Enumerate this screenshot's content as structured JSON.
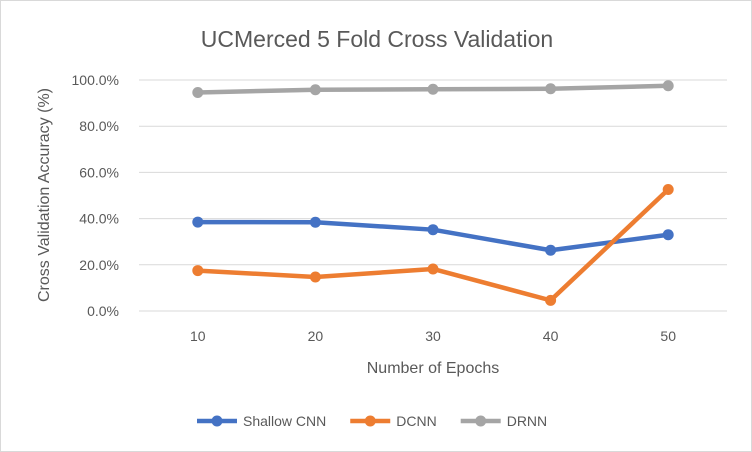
{
  "chart_data": {
    "type": "line",
    "title": "UCMerced 5 Fold Cross Validation",
    "xlabel": "Number of Epochs",
    "ylabel": "Cross Validation Accuracy (%)",
    "categories": [
      "10",
      "20",
      "30",
      "40",
      "50"
    ],
    "yticks": [
      "0.0%",
      "20.0%",
      "40.0%",
      "60.0%",
      "80.0%",
      "100.0%"
    ],
    "ylim": [
      0,
      100
    ],
    "grid": true,
    "legend_position": "bottom",
    "series": [
      {
        "name": "Shallow CNN",
        "color": "#4472c4",
        "values": [
          38.5,
          38.4,
          35.2,
          26.3,
          33.0
        ]
      },
      {
        "name": "DCNN",
        "color": "#ed7d31",
        "values": [
          17.5,
          14.7,
          18.2,
          4.6,
          52.6
        ]
      },
      {
        "name": "DRNN",
        "color": "#a5a5a5",
        "values": [
          94.6,
          95.8,
          96.0,
          96.2,
          97.5
        ]
      }
    ]
  }
}
